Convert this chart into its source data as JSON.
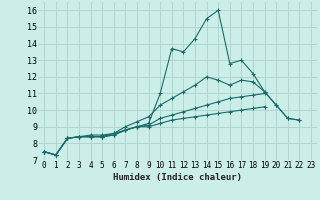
{
  "xlabel": "Humidex (Indice chaleur)",
  "bg_color": "#cceee8",
  "grid_color": "#b0d4ce",
  "line_color": "#1a6b6b",
  "xlim": [
    -0.5,
    23.5
  ],
  "ylim": [
    7,
    16.5
  ],
  "xticks": [
    0,
    1,
    2,
    3,
    4,
    5,
    6,
    7,
    8,
    9,
    10,
    11,
    12,
    13,
    14,
    15,
    16,
    17,
    18,
    19,
    20,
    21,
    22,
    23
  ],
  "yticks": [
    7,
    8,
    9,
    10,
    11,
    12,
    13,
    14,
    15,
    16
  ],
  "series": [
    [
      7.5,
      7.3,
      8.3,
      8.4,
      8.4,
      8.4,
      8.5,
      8.8,
      9.0,
      9.2,
      11.0,
      13.7,
      13.5,
      14.3,
      15.5,
      16.0,
      12.8,
      13.0,
      12.2,
      11.1,
      10.3,
      9.5,
      9.4,
      null
    ],
    [
      7.5,
      7.3,
      8.3,
      8.4,
      8.5,
      8.5,
      8.6,
      9.0,
      9.3,
      9.6,
      10.3,
      10.7,
      11.1,
      11.5,
      12.0,
      11.8,
      11.5,
      11.8,
      11.7,
      11.1,
      10.3,
      9.5,
      9.4,
      null
    ],
    [
      7.5,
      7.3,
      8.3,
      8.4,
      8.4,
      8.4,
      8.6,
      8.8,
      9.0,
      9.1,
      9.5,
      9.7,
      9.9,
      10.1,
      10.3,
      10.5,
      10.7,
      10.8,
      10.9,
      11.0,
      null,
      null,
      null,
      null
    ],
    [
      7.5,
      7.3,
      8.3,
      8.4,
      8.4,
      8.4,
      8.5,
      8.8,
      9.0,
      9.0,
      9.2,
      9.4,
      9.5,
      9.6,
      9.7,
      9.8,
      9.9,
      10.0,
      10.1,
      10.2,
      null,
      null,
      null,
      null
    ]
  ]
}
